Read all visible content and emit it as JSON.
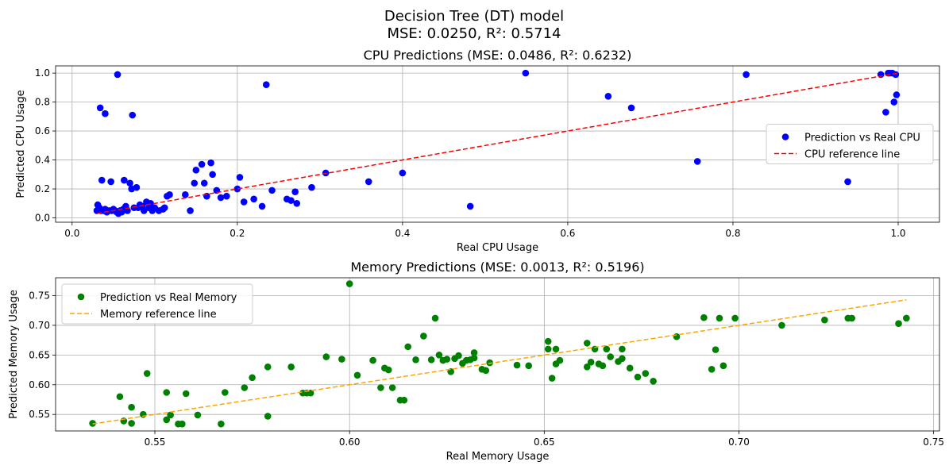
{
  "figure": {
    "title_line1": "Decision Tree (DT) model",
    "title_line2": "MSE: 0.0250, R²: 0.5714"
  },
  "chart_data": [
    {
      "type": "scatter",
      "title": "CPU Predictions (MSE: 0.0486, R²: 0.6232)",
      "xlabel": "Real CPU Usage",
      "ylabel": "Predicted CPU Usage",
      "xlim": [
        -0.02,
        1.05
      ],
      "ylim": [
        -0.03,
        1.05
      ],
      "xticks": [
        0.0,
        0.2,
        0.4,
        0.6,
        0.8,
        1.0
      ],
      "xtick_labels": [
        "0.0",
        "0.2",
        "0.4",
        "0.6",
        "0.8",
        "1.0"
      ],
      "yticks": [
        0.0,
        0.2,
        0.4,
        0.6,
        0.8,
        1.0
      ],
      "ytick_labels": [
        "0.0",
        "0.2",
        "0.4",
        "0.6",
        "0.8",
        "1.0"
      ],
      "grid": true,
      "legend_position": "center-right",
      "series": [
        {
          "name": "Prediction vs Real CPU",
          "kind": "scatter",
          "color": "#0000ff",
          "points": [
            [
              0.03,
              0.05
            ],
            [
              0.031,
              0.09
            ],
            [
              0.033,
              0.07
            ],
            [
              0.035,
              0.05
            ],
            [
              0.034,
              0.76
            ],
            [
              0.036,
              0.26
            ],
            [
              0.038,
              0.05
            ],
            [
              0.04,
              0.06
            ],
            [
              0.04,
              0.72
            ],
            [
              0.042,
              0.04
            ],
            [
              0.045,
              0.05
            ],
            [
              0.047,
              0.25
            ],
            [
              0.048,
              0.05
            ],
            [
              0.05,
              0.06
            ],
            [
              0.052,
              0.05
            ],
            [
              0.054,
              0.04
            ],
            [
              0.055,
              0.99
            ],
            [
              0.056,
              0.03
            ],
            [
              0.058,
              0.05
            ],
            [
              0.06,
              0.04
            ],
            [
              0.062,
              0.06
            ],
            [
              0.063,
              0.26
            ],
            [
              0.065,
              0.08
            ],
            [
              0.067,
              0.05
            ],
            [
              0.07,
              0.24
            ],
            [
              0.072,
              0.2
            ],
            [
              0.073,
              0.71
            ],
            [
              0.075,
              0.07
            ],
            [
              0.078,
              0.21
            ],
            [
              0.08,
              0.07
            ],
            [
              0.082,
              0.09
            ],
            [
              0.085,
              0.08
            ],
            [
              0.087,
              0.05
            ],
            [
              0.09,
              0.11
            ],
            [
              0.093,
              0.07
            ],
            [
              0.095,
              0.1
            ],
            [
              0.097,
              0.05
            ],
            [
              0.1,
              0.07
            ],
            [
              0.105,
              0.05
            ],
            [
              0.11,
              0.06
            ],
            [
              0.112,
              0.07
            ],
            [
              0.115,
              0.15
            ],
            [
              0.118,
              0.16
            ],
            [
              0.137,
              0.16
            ],
            [
              0.143,
              0.05
            ],
            [
              0.148,
              0.24
            ],
            [
              0.15,
              0.33
            ],
            [
              0.157,
              0.37
            ],
            [
              0.16,
              0.24
            ],
            [
              0.163,
              0.15
            ],
            [
              0.168,
              0.38
            ],
            [
              0.17,
              0.3
            ],
            [
              0.175,
              0.19
            ],
            [
              0.18,
              0.14
            ],
            [
              0.187,
              0.15
            ],
            [
              0.2,
              0.2
            ],
            [
              0.203,
              0.28
            ],
            [
              0.208,
              0.11
            ],
            [
              0.22,
              0.13
            ],
            [
              0.23,
              0.08
            ],
            [
              0.235,
              0.92
            ],
            [
              0.242,
              0.19
            ],
            [
              0.26,
              0.13
            ],
            [
              0.265,
              0.12
            ],
            [
              0.27,
              0.18
            ],
            [
              0.272,
              0.1
            ],
            [
              0.29,
              0.21
            ],
            [
              0.307,
              0.31
            ],
            [
              0.359,
              0.25
            ],
            [
              0.4,
              0.31
            ],
            [
              0.482,
              0.08
            ],
            [
              0.549,
              1.0
            ],
            [
              0.649,
              0.84
            ],
            [
              0.677,
              0.76
            ],
            [
              0.757,
              0.39
            ],
            [
              0.816,
              0.99
            ],
            [
              0.939,
              0.25
            ],
            [
              0.979,
              0.99
            ],
            [
              0.985,
              0.73
            ],
            [
              0.988,
              1.0
            ],
            [
              0.99,
              1.0
            ],
            [
              0.993,
              1.0
            ],
            [
              0.995,
              0.8
            ],
            [
              0.997,
              0.99
            ],
            [
              0.998,
              0.85
            ]
          ]
        },
        {
          "name": "CPU reference line",
          "kind": "line",
          "style": "dashed",
          "color": "#ff0000",
          "points": [
            [
              0.03,
              0.03
            ],
            [
              1.0,
              1.0
            ]
          ]
        }
      ]
    },
    {
      "type": "scatter",
      "title": "Memory Predictions (MSE: 0.0013, R²: 0.5196)",
      "xlabel": "Real Memory Usage",
      "ylabel": "Predicted Memory Usage",
      "xlim": [
        0.5245,
        0.7515
      ],
      "ylim": [
        0.5222,
        0.7801
      ],
      "xticks": [
        0.55,
        0.6,
        0.65,
        0.7,
        0.75
      ],
      "xtick_labels": [
        "0.55",
        "0.60",
        "0.65",
        "0.70",
        "0.75"
      ],
      "yticks": [
        0.55,
        0.6,
        0.65,
        0.7,
        0.75
      ],
      "ytick_labels": [
        "0.55",
        "0.60",
        "0.65",
        "0.70",
        "0.75"
      ],
      "grid": true,
      "legend_position": "upper-left",
      "series": [
        {
          "name": "Prediction vs Real Memory",
          "kind": "scatter",
          "color": "#008000",
          "points": [
            [
              0.534,
              0.535
            ],
            [
              0.541,
              0.58
            ],
            [
              0.542,
              0.539
            ],
            [
              0.544,
              0.535
            ],
            [
              0.544,
              0.562
            ],
            [
              0.547,
              0.55
            ],
            [
              0.548,
              0.619
            ],
            [
              0.553,
              0.541
            ],
            [
              0.553,
              0.587
            ],
            [
              0.554,
              0.549
            ],
            [
              0.556,
              0.534
            ],
            [
              0.557,
              0.534
            ],
            [
              0.558,
              0.585
            ],
            [
              0.561,
              0.549
            ],
            [
              0.567,
              0.534
            ],
            [
              0.568,
              0.587
            ],
            [
              0.573,
              0.595
            ],
            [
              0.575,
              0.612
            ],
            [
              0.579,
              0.547
            ],
            [
              0.579,
              0.63
            ],
            [
              0.585,
              0.63
            ],
            [
              0.588,
              0.586
            ],
            [
              0.589,
              0.586
            ],
            [
              0.59,
              0.586
            ],
            [
              0.594,
              0.647
            ],
            [
              0.598,
              0.643
            ],
            [
              0.6,
              0.77
            ],
            [
              0.602,
              0.616
            ],
            [
              0.606,
              0.641
            ],
            [
              0.608,
              0.595
            ],
            [
              0.609,
              0.628
            ],
            [
              0.61,
              0.625
            ],
            [
              0.611,
              0.595
            ],
            [
              0.613,
              0.574
            ],
            [
              0.614,
              0.574
            ],
            [
              0.615,
              0.664
            ],
            [
              0.617,
              0.642
            ],
            [
              0.619,
              0.682
            ],
            [
              0.621,
              0.642
            ],
            [
              0.622,
              0.712
            ],
            [
              0.623,
              0.65
            ],
            [
              0.624,
              0.641
            ],
            [
              0.625,
              0.643
            ],
            [
              0.626,
              0.622
            ],
            [
              0.627,
              0.644
            ],
            [
              0.628,
              0.649
            ],
            [
              0.629,
              0.636
            ],
            [
              0.63,
              0.641
            ],
            [
              0.631,
              0.642
            ],
            [
              0.632,
              0.654
            ],
            [
              0.632,
              0.645
            ],
            [
              0.634,
              0.626
            ],
            [
              0.635,
              0.624
            ],
            [
              0.636,
              0.637
            ],
            [
              0.643,
              0.633
            ],
            [
              0.646,
              0.632
            ],
            [
              0.651,
              0.673
            ],
            [
              0.651,
              0.66
            ],
            [
              0.652,
              0.611
            ],
            [
              0.653,
              0.635
            ],
            [
              0.653,
              0.66
            ],
            [
              0.654,
              0.641
            ],
            [
              0.661,
              0.67
            ],
            [
              0.661,
              0.63
            ],
            [
              0.662,
              0.638
            ],
            [
              0.663,
              0.66
            ],
            [
              0.664,
              0.635
            ],
            [
              0.665,
              0.632
            ],
            [
              0.666,
              0.66
            ],
            [
              0.667,
              0.647
            ],
            [
              0.669,
              0.639
            ],
            [
              0.67,
              0.66
            ],
            [
              0.67,
              0.644
            ],
            [
              0.672,
              0.628
            ],
            [
              0.674,
              0.613
            ],
            [
              0.676,
              0.619
            ],
            [
              0.678,
              0.606
            ],
            [
              0.684,
              0.681
            ],
            [
              0.691,
              0.713
            ],
            [
              0.693,
              0.626
            ],
            [
              0.694,
              0.659
            ],
            [
              0.695,
              0.712
            ],
            [
              0.696,
              0.632
            ],
            [
              0.699,
              0.712
            ],
            [
              0.711,
              0.7
            ],
            [
              0.722,
              0.709
            ],
            [
              0.728,
              0.712
            ],
            [
              0.729,
              0.712
            ],
            [
              0.741,
              0.703
            ],
            [
              0.743,
              0.712
            ]
          ]
        },
        {
          "name": "Memory reference line",
          "kind": "line",
          "style": "dashed",
          "color": "#ffa500",
          "points": [
            [
              0.534,
              0.534
            ],
            [
              0.743,
              0.743
            ]
          ]
        }
      ]
    }
  ]
}
